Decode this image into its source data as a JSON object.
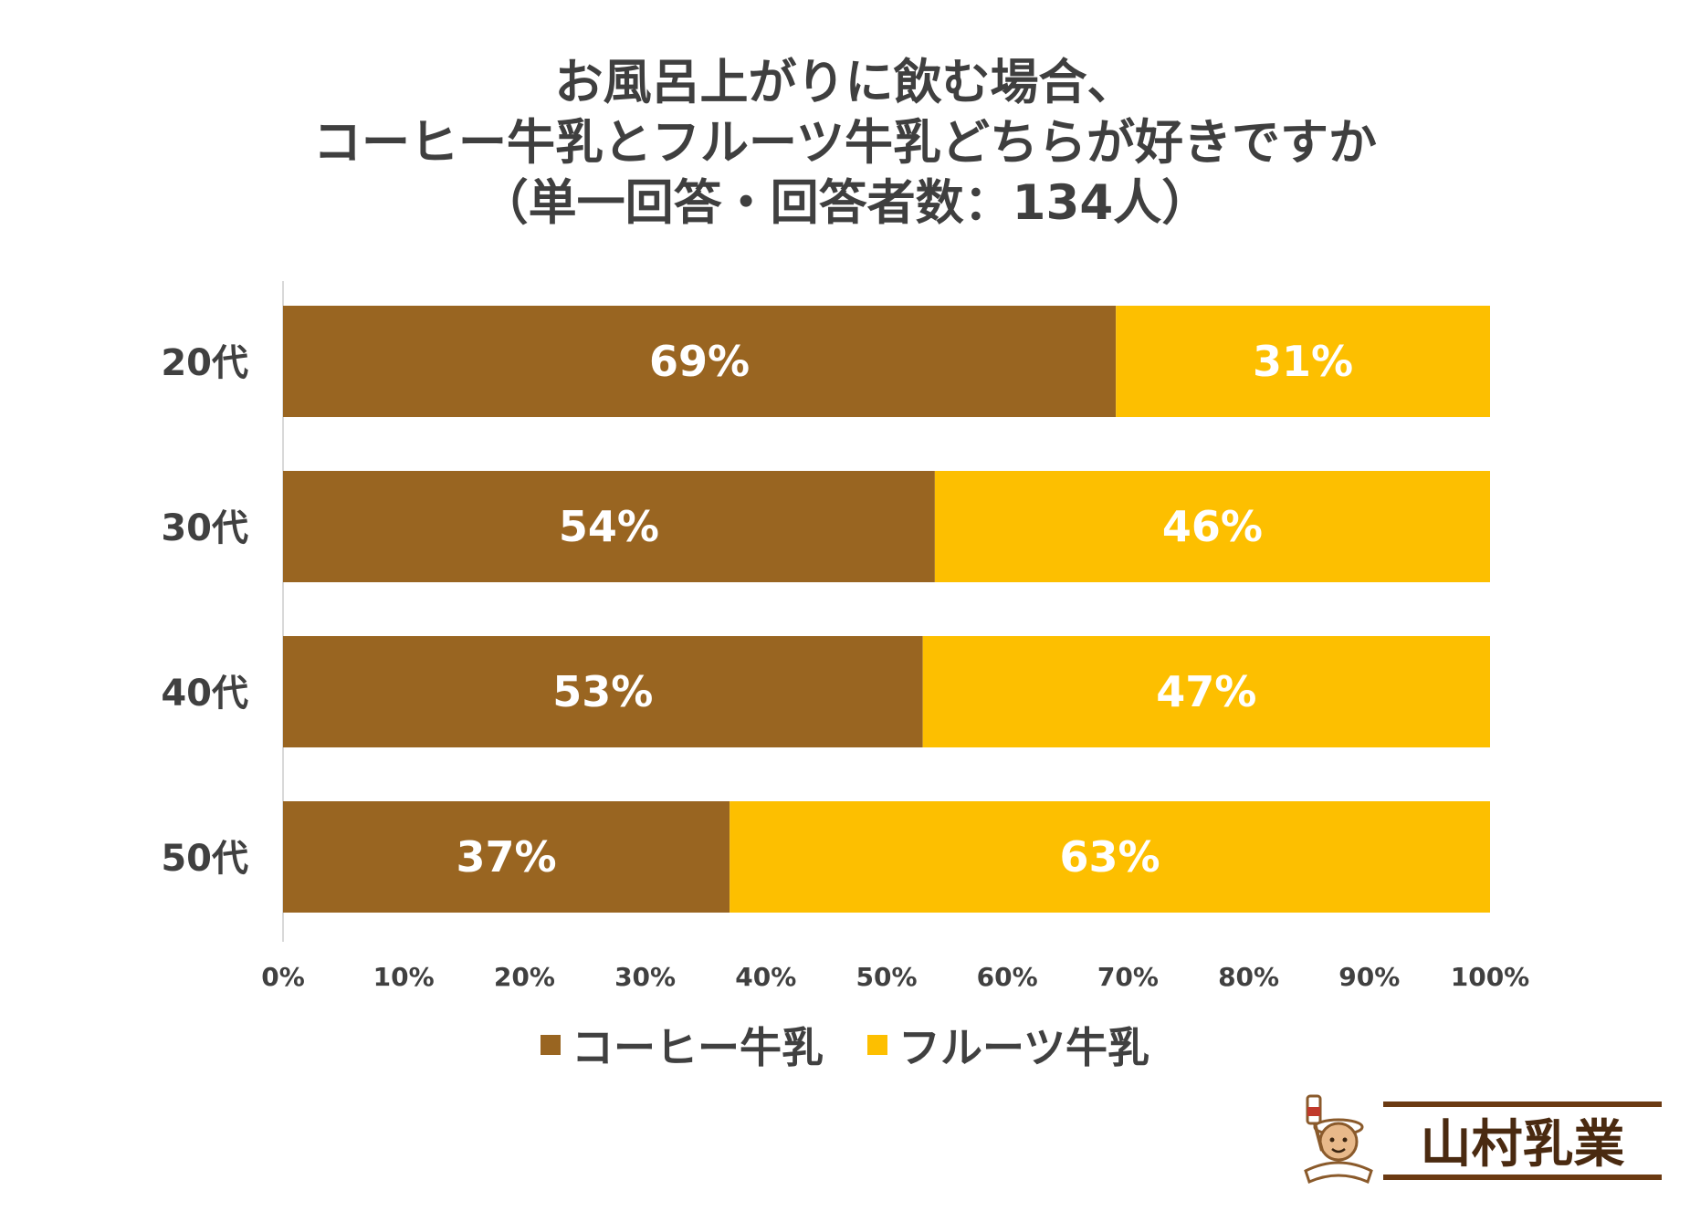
{
  "title_lines": [
    "お風呂上がりに飲む場合、",
    "コーヒー牛乳とフルーツ牛乳どちらが好きですか",
    "（単一回答・回答者数：134人）"
  ],
  "colors": {
    "coffee": "#996521",
    "fruit": "#FDBF00",
    "axis": "#d9d9d9"
  },
  "chart_data": {
    "type": "bar",
    "orientation": "horizontal",
    "stacked": "percent",
    "categories": [
      "20代",
      "30代",
      "40代",
      "50代"
    ],
    "series": [
      {
        "name": "コーヒー牛乳",
        "values": [
          69,
          54,
          53,
          37
        ],
        "labels": [
          "69%",
          "54%",
          "53%",
          "37%"
        ]
      },
      {
        "name": "フルーツ牛乳",
        "values": [
          31,
          46,
          47,
          63
        ],
        "labels": [
          "31%",
          "46%",
          "47%",
          "63%"
        ]
      }
    ],
    "xlim": [
      0,
      100
    ],
    "xticks": [
      "0%",
      "10%",
      "20%",
      "30%",
      "40%",
      "50%",
      "60%",
      "70%",
      "80%",
      "90%",
      "100%"
    ],
    "grid": false,
    "legend": "bottom"
  },
  "legend": {
    "coffee": "コーヒー牛乳",
    "fruit": "フルーツ牛乳"
  },
  "logo": {
    "text": "山村乳業",
    "badge_text": "山村乳業"
  }
}
